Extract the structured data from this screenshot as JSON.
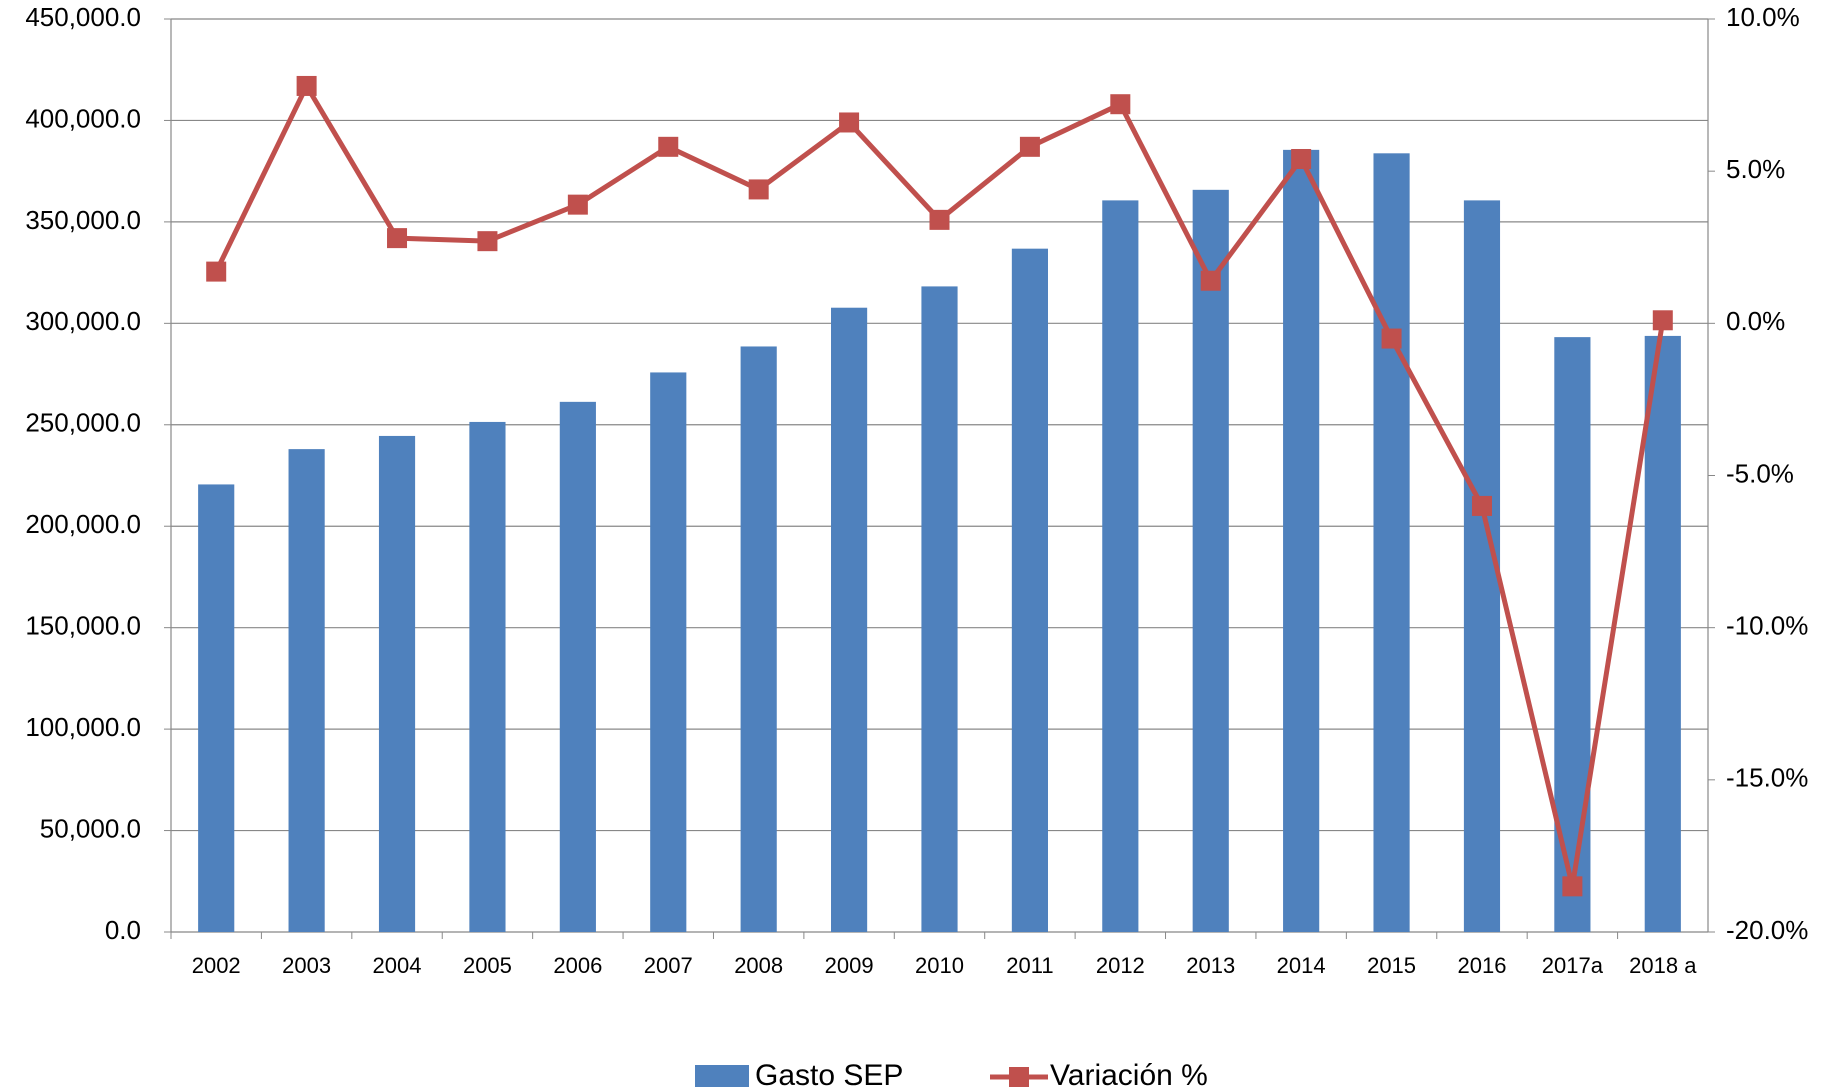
{
  "chart_data": {
    "type": "bar+line",
    "categories": [
      "2002",
      "2003",
      "2004",
      "2005",
      "2006",
      "2007",
      "2008",
      "2009",
      "2010",
      "2011",
      "2012",
      "2013",
      "2014",
      "2015",
      "2016",
      "2017a",
      "2018 a"
    ],
    "series": [
      {
        "name": "Gasto SEP",
        "type": "bar",
        "color": "#4f81bd",
        "values": [
          220600,
          238000,
          244500,
          251400,
          261300,
          275800,
          288600,
          307700,
          318200,
          336800,
          360600,
          365800,
          385500,
          383800,
          360600,
          293200,
          293800
        ]
      },
      {
        "name": "Variación %",
        "type": "line",
        "axis": "y2",
        "color": "#c0504d",
        "values": [
          1.7,
          7.8,
          2.8,
          2.7,
          3.9,
          5.8,
          4.4,
          6.6,
          3.4,
          5.8,
          7.2,
          1.4,
          5.4,
          -0.5,
          -6.0,
          -18.5,
          0.1
        ]
      }
    ],
    "ylim": [
      0,
      450000
    ],
    "yticks": [
      {
        "value": 0,
        "label": "0.0"
      },
      {
        "value": 50000,
        "label": "50,000.0"
      },
      {
        "value": 100000,
        "label": "100,000.0"
      },
      {
        "value": 150000,
        "label": "150,000.0"
      },
      {
        "value": 200000,
        "label": "200,000.0"
      },
      {
        "value": 250000,
        "label": "250,000.0"
      },
      {
        "value": 300000,
        "label": "300,000.0"
      },
      {
        "value": 350000,
        "label": "350,000.0"
      },
      {
        "value": 400000,
        "label": "400,000.0"
      },
      {
        "value": 450000,
        "label": "450,000.0"
      }
    ],
    "y2lim": [
      -20,
      10
    ],
    "y2ticks": [
      {
        "value": -20,
        "label": "-20.0%"
      },
      {
        "value": -15,
        "label": "-15.0%"
      },
      {
        "value": -10,
        "label": "-10.0%"
      },
      {
        "value": -5,
        "label": "-5.0%"
      },
      {
        "value": 0,
        "label": "0.0%"
      },
      {
        "value": 5,
        "label": "5.0%"
      },
      {
        "value": 10,
        "label": "10.0%"
      }
    ],
    "grid": true,
    "legend": "bottom"
  }
}
